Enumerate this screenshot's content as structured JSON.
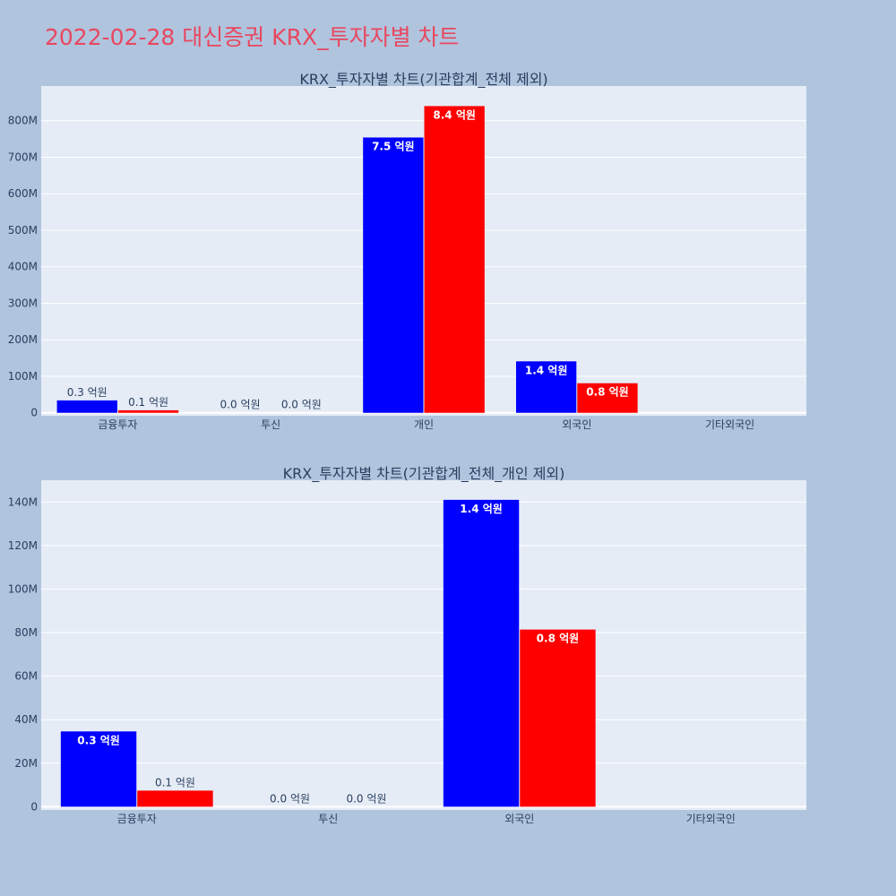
{
  "page": {
    "title": "2022-02-28 대신증권 KRX_투자자별 차트"
  },
  "colors": {
    "background": "#b0c4de",
    "plot_bg": "#e5ecf6",
    "grid": "#ffffff",
    "title": "#e8475f",
    "text": "#2a3f5f",
    "series_1": "#0000ff",
    "series_2": "#ff0000"
  },
  "chart_data": [
    {
      "type": "bar",
      "title": "KRX_투자자별 차트(기관합계_전체 제외)",
      "categories": [
        "금융투자",
        "투신",
        "개인",
        "외국인",
        "기타외국인"
      ],
      "series": [
        {
          "color": "#0000ff",
          "values": [
            34000000,
            0,
            754000000,
            141000000,
            0
          ],
          "labels": [
            "0.3 억원",
            "0.0 억원",
            "7.5 억원",
            "1.4 억원",
            ""
          ]
        },
        {
          "color": "#ff0000",
          "values": [
            7000000,
            0,
            840000000,
            81000000,
            0
          ],
          "labels": [
            "0.1 억원",
            "0.0 억원",
            "8.4 억원",
            "0.8 억원",
            ""
          ]
        }
      ],
      "ylim": [
        -8000000,
        895000000
      ],
      "yticks": [
        0,
        100000000,
        200000000,
        300000000,
        400000000,
        500000000,
        600000000,
        700000000,
        800000000
      ],
      "ytick_labels": [
        "0",
        "100M",
        "200M",
        "300M",
        "400M",
        "500M",
        "600M",
        "700M",
        "800M"
      ],
      "grid": true
    },
    {
      "type": "bar",
      "title": "KRX_투자자별 차트(기관합계_전체_개인 제외)",
      "categories": [
        "금융투자",
        "투신",
        "외국인",
        "기타외국인"
      ],
      "series": [
        {
          "color": "#0000ff",
          "values": [
            34600000,
            0,
            141000000,
            0
          ],
          "labels": [
            "0.3 억원",
            "0.0 억원",
            "1.4 억원",
            ""
          ]
        },
        {
          "color": "#ff0000",
          "values": [
            7400000,
            0,
            81400000,
            0
          ],
          "labels": [
            "0.1 억원",
            "0.0 억원",
            "0.8 억원",
            ""
          ]
        }
      ],
      "ylim": [
        -1500000,
        150000000
      ],
      "yticks": [
        0,
        20000000,
        40000000,
        60000000,
        80000000,
        100000000,
        120000000,
        140000000
      ],
      "ytick_labels": [
        "0",
        "20M",
        "40M",
        "60M",
        "80M",
        "100M",
        "120M",
        "140M"
      ],
      "grid": true
    }
  ]
}
